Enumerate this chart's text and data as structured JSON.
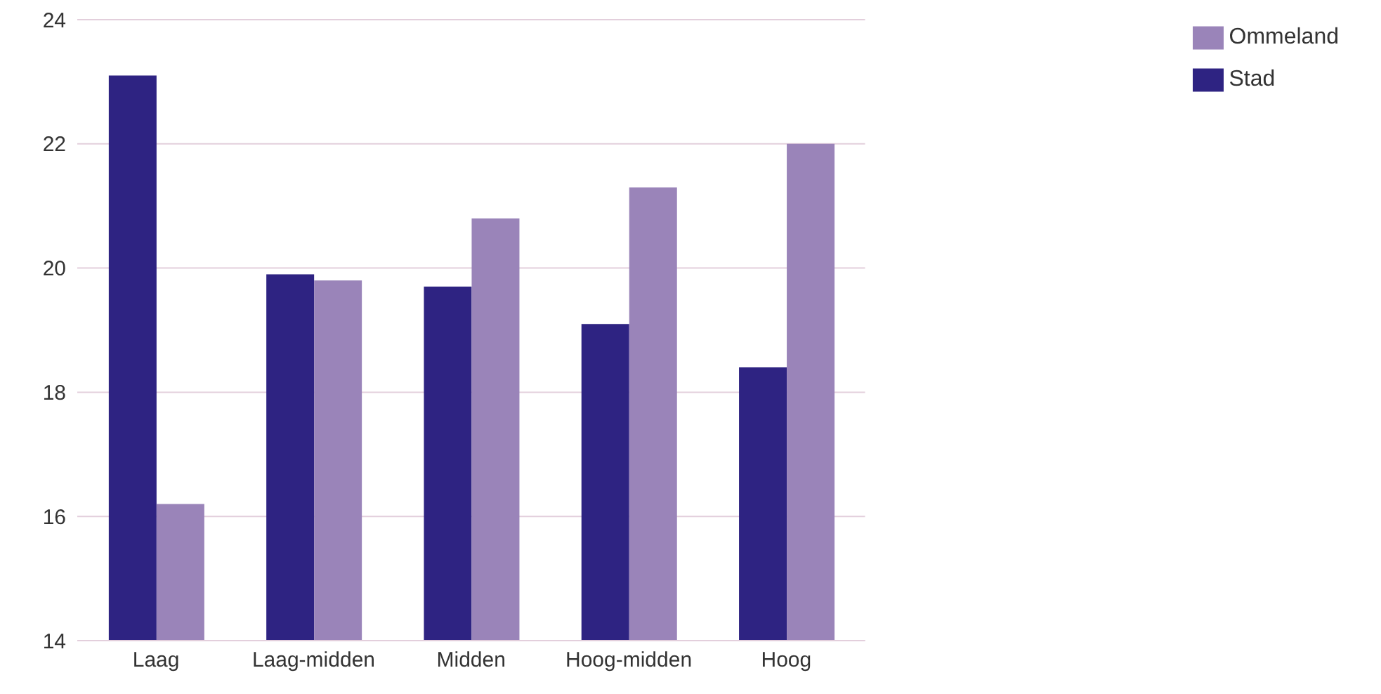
{
  "chart_data": {
    "type": "bar",
    "categories": [
      "Laag",
      "Laag-midden",
      "Midden",
      "Hoog-midden",
      "Hoog"
    ],
    "series": [
      {
        "name": "Stad",
        "color": "#2e2382",
        "values": [
          23.1,
          19.9,
          19.7,
          19.1,
          18.4
        ]
      },
      {
        "name": "Ommeland",
        "color": "#9a84b9",
        "values": [
          16.2,
          19.8,
          20.8,
          21.3,
          22.0
        ]
      }
    ],
    "ylim": [
      14,
      24
    ],
    "yticks": [
      14,
      16,
      18,
      20,
      22,
      24
    ],
    "grid": "y",
    "legend": "top right"
  }
}
